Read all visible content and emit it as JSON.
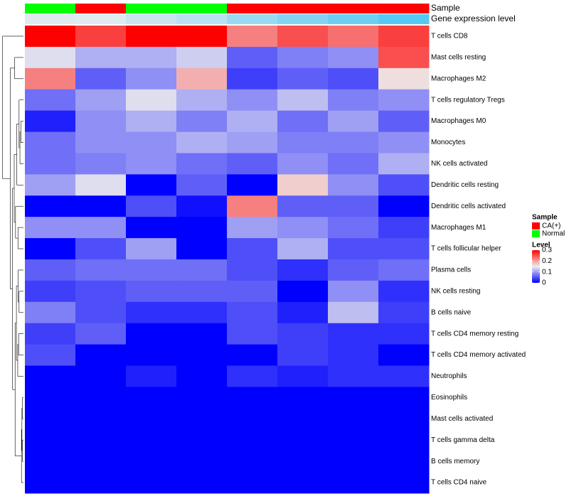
{
  "chart_data": {
    "type": "heatmap",
    "annotation_labels": {
      "sample": "Sample",
      "gene_expression": "Gene expression level"
    },
    "columns": [
      {
        "sample": "Normal",
        "gene_expression": 0.1
      },
      {
        "sample": "CA(+)",
        "gene_expression": 0.09
      },
      {
        "sample": "Normal",
        "gene_expression": 0.25
      },
      {
        "sample": "Normal",
        "gene_expression": 0.35
      },
      {
        "sample": "CA(+)",
        "gene_expression": 0.55
      },
      {
        "sample": "CA(+)",
        "gene_expression": 0.7
      },
      {
        "sample": "CA(+)",
        "gene_expression": 0.85
      },
      {
        "sample": "CA(+)",
        "gene_expression": 1.0
      }
    ],
    "rows": [
      "T cells CD8",
      "Mast cells resting",
      "Macrophages M2",
      "T cells regulatory  Tregs",
      "Macrophages M0",
      "Monocytes",
      "NK cells activated",
      "Dendritic cells resting",
      "Dendritic cells activated",
      "Macrophages M1",
      "T cells follicular helper",
      "Plasma cells",
      "NK cells resting",
      "B cells naive",
      "T cells CD4 memory resting",
      "T cells CD4 memory activated",
      "Neutrophils",
      "Eosinophils",
      "Mast cells activated",
      "T cells gamma delta",
      "B cells memory",
      "T cells CD4 naive"
    ],
    "values": [
      [
        0.3,
        0.26,
        0.3,
        0.3,
        0.22,
        0.25,
        0.23,
        0.26
      ],
      [
        0.14,
        0.11,
        0.11,
        0.13,
        0.06,
        0.08,
        0.09,
        0.25
      ],
      [
        0.22,
        0.06,
        0.09,
        0.19,
        0.04,
        0.06,
        0.05,
        0.16
      ],
      [
        0.07,
        0.1,
        0.14,
        0.11,
        0.09,
        0.12,
        0.08,
        0.09
      ],
      [
        0.02,
        0.09,
        0.11,
        0.08,
        0.11,
        0.07,
        0.1,
        0.06
      ],
      [
        0.07,
        0.09,
        0.09,
        0.11,
        0.1,
        0.08,
        0.08,
        0.09
      ],
      [
        0.07,
        0.08,
        0.09,
        0.07,
        0.06,
        0.09,
        0.07,
        0.11
      ],
      [
        0.1,
        0.14,
        0.0,
        0.06,
        0.0,
        0.17,
        0.09,
        0.05
      ],
      [
        0.0,
        0.0,
        0.05,
        0.01,
        0.22,
        0.06,
        0.06,
        0.0
      ],
      [
        0.09,
        0.09,
        0.0,
        0.0,
        0.1,
        0.09,
        0.07,
        0.04
      ],
      [
        0.0,
        0.05,
        0.1,
        0.0,
        0.05,
        0.11,
        0.05,
        0.05
      ],
      [
        0.06,
        0.07,
        0.07,
        0.07,
        0.05,
        0.03,
        0.06,
        0.07
      ],
      [
        0.04,
        0.05,
        0.06,
        0.06,
        0.06,
        0.0,
        0.09,
        0.03
      ],
      [
        0.08,
        0.05,
        0.03,
        0.03,
        0.05,
        0.02,
        0.12,
        0.04
      ],
      [
        0.04,
        0.06,
        0.0,
        0.0,
        0.05,
        0.04,
        0.03,
        0.03
      ],
      [
        0.05,
        0.0,
        0.0,
        0.0,
        0.0,
        0.04,
        0.03,
        0.0
      ],
      [
        0.0,
        0.0,
        0.02,
        0.0,
        0.03,
        0.02,
        0.03,
        0.03
      ],
      [
        0.0,
        0.0,
        0.0,
        0.0,
        0.0,
        0.0,
        0.0,
        0.0
      ],
      [
        0.0,
        0.0,
        0.0,
        0.0,
        0.0,
        0.0,
        0.0,
        0.0
      ],
      [
        0.0,
        0.0,
        0.0,
        0.0,
        0.0,
        0.0,
        0.0,
        0.0
      ],
      [
        0.0,
        0.0,
        0.0,
        0.0,
        0.0,
        0.0,
        0.0,
        0.0
      ],
      [
        0.0,
        0.0,
        0.0,
        0.0,
        0.0,
        0.0,
        0.0,
        0.0
      ]
    ],
    "legend": {
      "sample_title": "Sample",
      "sample_items": [
        {
          "label": "CA(+)",
          "color": "#ff0000"
        },
        {
          "label": "Normal",
          "color": "#00ff00"
        }
      ],
      "level_title": "Level",
      "level_ticks": [
        0.3,
        0.2,
        0.1,
        0
      ],
      "level_tick_labels": [
        "0.3",
        "0.2",
        "0.1",
        "0"
      ],
      "level_range": [
        0,
        0.3
      ],
      "placement": "right"
    },
    "colors": {
      "low": "#0000ff",
      "mid": "#eeeeee",
      "high": "#ff0000",
      "mid_value": 0.15,
      "gene_low": "#eeeeee",
      "gene_high": "#56c8f5"
    }
  }
}
